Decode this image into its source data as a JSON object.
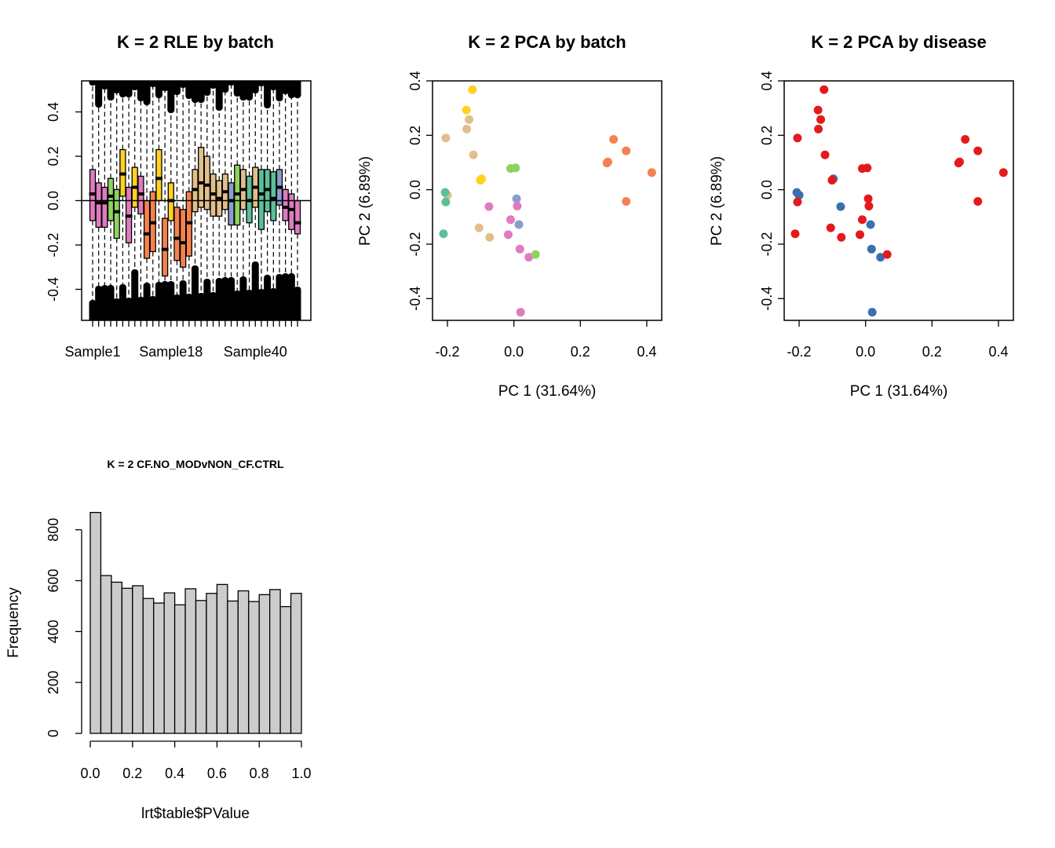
{
  "colors": {
    "axis": "#000000",
    "hist_fill": "#cccccc",
    "disease_red": "#e31a1c",
    "disease_blue": "#3a6fb0",
    "batch_palette": [
      "#e07bc0",
      "#8dd35f",
      "#ffd21f",
      "#f4824f",
      "#e2bf8a",
      "#8b9ccf",
      "#5cbf9a"
    ]
  },
  "chart_data": [
    {
      "id": "rle",
      "type": "box",
      "title": "K = 2 RLE by batch",
      "xlabel": "",
      "ylabel": "",
      "ylim": [
        -0.54,
        0.54
      ],
      "yticks": [
        "-0.4",
        "-0.2",
        "0.0",
        "0.2",
        "0.4"
      ],
      "ytick_values": [
        -0.4,
        -0.2,
        0.0,
        0.2,
        0.4
      ],
      "xtick_labels": [
        "Sample1",
        "Sample18",
        "Sample40"
      ],
      "xtick_label_index": [
        0,
        13,
        27
      ],
      "hline": 0,
      "boxes": [
        {
          "q1": -0.09,
          "med": 0.03,
          "q3": 0.14,
          "color": 0
        },
        {
          "q1": -0.12,
          "med": -0.01,
          "q3": 0.08,
          "color": 0
        },
        {
          "q1": -0.12,
          "med": -0.01,
          "q3": 0.06,
          "color": 0
        },
        {
          "q1": -0.09,
          "med": 0.02,
          "q3": 0.1,
          "color": 1
        },
        {
          "q1": -0.17,
          "med": -0.05,
          "q3": 0.05,
          "color": 1
        },
        {
          "q1": 0.02,
          "med": 0.12,
          "q3": 0.23,
          "color": 2
        },
        {
          "q1": -0.19,
          "med": -0.07,
          "q3": 0.06,
          "color": 0
        },
        {
          "q1": -0.03,
          "med": 0.06,
          "q3": 0.15,
          "color": 2
        },
        {
          "q1": -0.06,
          "med": 0.03,
          "q3": 0.11,
          "color": 0
        },
        {
          "q1": -0.26,
          "med": -0.15,
          "q3": 0.0,
          "color": 3
        },
        {
          "q1": -0.23,
          "med": -0.1,
          "q3": 0.04,
          "color": 3
        },
        {
          "q1": 0.0,
          "med": 0.1,
          "q3": 0.23,
          "color": 2
        },
        {
          "q1": -0.34,
          "med": -0.22,
          "q3": -0.08,
          "color": 3
        },
        {
          "q1": -0.09,
          "med": 0.0,
          "q3": 0.08,
          "color": 2
        },
        {
          "q1": -0.27,
          "med": -0.17,
          "q3": -0.03,
          "color": 3
        },
        {
          "q1": -0.3,
          "med": -0.19,
          "q3": -0.04,
          "color": 3
        },
        {
          "q1": -0.25,
          "med": -0.1,
          "q3": 0.04,
          "color": 3
        },
        {
          "q1": -0.05,
          "med": 0.05,
          "q3": 0.14,
          "color": 4
        },
        {
          "q1": -0.03,
          "med": 0.08,
          "q3": 0.24,
          "color": 4
        },
        {
          "q1": -0.04,
          "med": 0.07,
          "q3": 0.2,
          "color": 4
        },
        {
          "q1": -0.07,
          "med": 0.03,
          "q3": 0.12,
          "color": 4
        },
        {
          "q1": -0.07,
          "med": 0.01,
          "q3": 0.09,
          "color": 4
        },
        {
          "q1": -0.04,
          "med": 0.04,
          "q3": 0.12,
          "color": 4
        },
        {
          "q1": -0.11,
          "med": 0.0,
          "q3": 0.08,
          "color": 5
        },
        {
          "q1": -0.11,
          "med": 0.03,
          "q3": 0.16,
          "color": 1
        },
        {
          "q1": -0.04,
          "med": 0.05,
          "q3": 0.14,
          "color": 4
        },
        {
          "q1": -0.1,
          "med": 0.0,
          "q3": 0.11,
          "color": 6
        },
        {
          "q1": -0.03,
          "med": 0.06,
          "q3": 0.15,
          "color": 4
        },
        {
          "q1": -0.13,
          "med": 0.03,
          "q3": 0.14,
          "color": 6
        },
        {
          "q1": -0.05,
          "med": 0.05,
          "q3": 0.14,
          "color": 6
        },
        {
          "q1": -0.09,
          "med": 0.01,
          "q3": 0.13,
          "color": 6
        },
        {
          "q1": -0.02,
          "med": 0.06,
          "q3": 0.14,
          "color": 5
        },
        {
          "q1": -0.09,
          "med": -0.03,
          "q3": 0.05,
          "color": 0
        },
        {
          "q1": -0.13,
          "med": -0.04,
          "q3": 0.03,
          "color": 0
        },
        {
          "q1": -0.15,
          "med": -0.1,
          "q3": 0.0,
          "color": 0
        }
      ]
    },
    {
      "id": "pca-batch",
      "type": "scatter",
      "title": "K = 2 PCA by batch",
      "xlabel": "PC 1 (31.64%)",
      "ylabel": "PC 2 (6.89%)",
      "xlim": [
        -0.245,
        0.445
      ],
      "ylim": [
        -0.48,
        0.4
      ],
      "xticks": [
        "-0.2",
        "0.0",
        "0.2",
        "0.4"
      ],
      "xtick_values": [
        -0.2,
        0.0,
        0.2,
        0.4
      ],
      "yticks": [
        "-0.4",
        "-0.2",
        "0.0",
        "0.2",
        "0.4"
      ],
      "ytick_values": [
        -0.4,
        -0.2,
        0.0,
        0.2,
        0.4
      ],
      "points": [
        {
          "x": -0.125,
          "y": 0.368,
          "c": 2
        },
        {
          "x": -0.143,
          "y": 0.293,
          "c": 2
        },
        {
          "x": -0.135,
          "y": 0.258,
          "c": 4
        },
        {
          "x": -0.142,
          "y": 0.223,
          "c": 4
        },
        {
          "x": -0.205,
          "y": 0.19,
          "c": 4
        },
        {
          "x": -0.122,
          "y": 0.128,
          "c": 4
        },
        {
          "x": -0.097,
          "y": 0.04,
          "c": 2
        },
        {
          "x": -0.101,
          "y": 0.035,
          "c": 2
        },
        {
          "x": -0.2,
          "y": -0.02,
          "c": 4
        },
        {
          "x": -0.207,
          "y": -0.01,
          "c": 6
        },
        {
          "x": -0.205,
          "y": -0.045,
          "c": 6
        },
        {
          "x": -0.212,
          "y": -0.162,
          "c": 6
        },
        {
          "x": -0.105,
          "y": -0.14,
          "c": 4
        },
        {
          "x": -0.073,
          "y": -0.175,
          "c": 4
        },
        {
          "x": -0.075,
          "y": -0.062,
          "c": 0
        },
        {
          "x": -0.01,
          "y": 0.078,
          "c": 1
        },
        {
          "x": 0.005,
          "y": 0.08,
          "c": 1
        },
        {
          "x": 0.008,
          "y": -0.033,
          "c": 5
        },
        {
          "x": 0.01,
          "y": -0.06,
          "c": 0
        },
        {
          "x": -0.01,
          "y": -0.11,
          "c": 0
        },
        {
          "x": 0.015,
          "y": -0.128,
          "c": 5
        },
        {
          "x": -0.017,
          "y": -0.165,
          "c": 0
        },
        {
          "x": 0.018,
          "y": -0.218,
          "c": 0
        },
        {
          "x": 0.045,
          "y": -0.248,
          "c": 0
        },
        {
          "x": 0.065,
          "y": -0.238,
          "c": 1
        },
        {
          "x": 0.02,
          "y": -0.45,
          "c": 0
        },
        {
          "x": 0.28,
          "y": 0.098,
          "c": 3
        },
        {
          "x": 0.283,
          "y": 0.102,
          "c": 3
        },
        {
          "x": 0.3,
          "y": 0.185,
          "c": 3
        },
        {
          "x": 0.338,
          "y": 0.143,
          "c": 3
        },
        {
          "x": 0.415,
          "y": 0.063,
          "c": 3
        },
        {
          "x": 0.338,
          "y": -0.043,
          "c": 3
        }
      ]
    },
    {
      "id": "pca-disease",
      "type": "scatter",
      "title": "K = 2 PCA by disease",
      "xlabel": "PC 1 (31.64%)",
      "ylabel": "PC 2 (6.89%)",
      "xlim": [
        -0.245,
        0.445
      ],
      "ylim": [
        -0.48,
        0.4
      ],
      "xticks": [
        "-0.2",
        "0.0",
        "0.2",
        "0.4"
      ],
      "xtick_values": [
        -0.2,
        0.0,
        0.2,
        0.4
      ],
      "yticks": [
        "-0.4",
        "-0.2",
        "0.0",
        "0.2",
        "0.4"
      ],
      "ytick_values": [
        -0.4,
        -0.2,
        0.0,
        0.2,
        0.4
      ],
      "points": [
        {
          "x": -0.125,
          "y": 0.368,
          "c": "red"
        },
        {
          "x": -0.143,
          "y": 0.293,
          "c": "red"
        },
        {
          "x": -0.135,
          "y": 0.258,
          "c": "red"
        },
        {
          "x": -0.142,
          "y": 0.223,
          "c": "red"
        },
        {
          "x": -0.205,
          "y": 0.19,
          "c": "red"
        },
        {
          "x": -0.122,
          "y": 0.128,
          "c": "red"
        },
        {
          "x": -0.097,
          "y": 0.04,
          "c": "blue"
        },
        {
          "x": -0.101,
          "y": 0.035,
          "c": "red"
        },
        {
          "x": -0.2,
          "y": -0.02,
          "c": "blue"
        },
        {
          "x": -0.207,
          "y": -0.01,
          "c": "blue"
        },
        {
          "x": -0.205,
          "y": -0.045,
          "c": "red"
        },
        {
          "x": -0.212,
          "y": -0.162,
          "c": "red"
        },
        {
          "x": -0.105,
          "y": -0.14,
          "c": "red"
        },
        {
          "x": -0.073,
          "y": -0.175,
          "c": "red"
        },
        {
          "x": -0.075,
          "y": -0.062,
          "c": "blue"
        },
        {
          "x": -0.01,
          "y": 0.078,
          "c": "red"
        },
        {
          "x": 0.005,
          "y": 0.08,
          "c": "red"
        },
        {
          "x": 0.008,
          "y": -0.033,
          "c": "red"
        },
        {
          "x": 0.01,
          "y": -0.06,
          "c": "red"
        },
        {
          "x": -0.01,
          "y": -0.11,
          "c": "red"
        },
        {
          "x": 0.015,
          "y": -0.128,
          "c": "blue"
        },
        {
          "x": -0.017,
          "y": -0.165,
          "c": "red"
        },
        {
          "x": 0.018,
          "y": -0.218,
          "c": "blue"
        },
        {
          "x": 0.045,
          "y": -0.248,
          "c": "blue"
        },
        {
          "x": 0.065,
          "y": -0.238,
          "c": "red"
        },
        {
          "x": 0.02,
          "y": -0.45,
          "c": "blue"
        },
        {
          "x": 0.28,
          "y": 0.098,
          "c": "red"
        },
        {
          "x": 0.283,
          "y": 0.102,
          "c": "red"
        },
        {
          "x": 0.3,
          "y": 0.185,
          "c": "red"
        },
        {
          "x": 0.338,
          "y": 0.143,
          "c": "red"
        },
        {
          "x": 0.415,
          "y": 0.063,
          "c": "red"
        },
        {
          "x": 0.338,
          "y": -0.043,
          "c": "red"
        }
      ]
    },
    {
      "id": "hist",
      "type": "bar",
      "title": "K = 2 CF.NO_MODvNON_CF.CTRL",
      "xlabel": "lrt$table$PValue",
      "ylabel": "Frequency",
      "xlim": [
        0,
        1
      ],
      "ylim": [
        0,
        870
      ],
      "xticks": [
        "0.0",
        "0.2",
        "0.4",
        "0.6",
        "0.8",
        "1.0"
      ],
      "xtick_values": [
        0,
        0.2,
        0.4,
        0.6,
        0.8,
        1.0
      ],
      "yticks": [
        "0",
        "200",
        "400",
        "600",
        "800"
      ],
      "ytick_values": [
        0,
        200,
        400,
        600,
        800
      ],
      "bin_width": 0.05,
      "values": [
        868,
        620,
        594,
        570,
        580,
        530,
        512,
        552,
        505,
        568,
        522,
        550,
        585,
        520,
        560,
        518,
        545,
        565,
        498,
        550
      ]
    }
  ]
}
